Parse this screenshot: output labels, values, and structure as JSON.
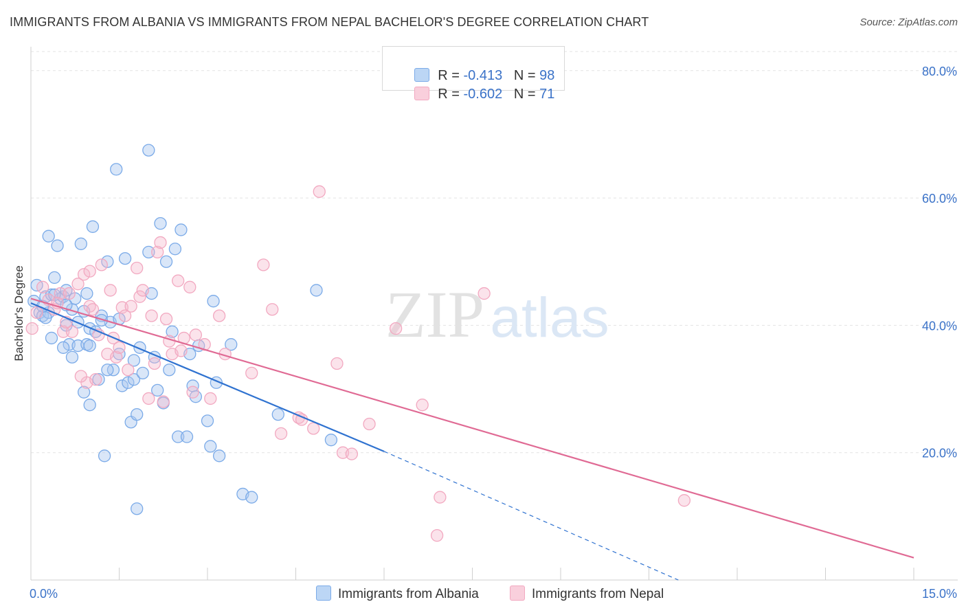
{
  "title": "IMMIGRANTS FROM ALBANIA VS IMMIGRANTS FROM NEPAL BACHELOR'S DEGREE CORRELATION CHART",
  "source": "Source: ZipAtlas.com",
  "watermark": {
    "zip": "ZIP",
    "atlas": "atlas"
  },
  "legend": {
    "rows": [
      {
        "r_label": "R = ",
        "r_value": "-0.413",
        "n_label": "N = ",
        "n_value": "98",
        "color": "#a8c8f0"
      },
      {
        "r_label": "R = ",
        "r_value": "-0.602",
        "n_label": "N = ",
        "n_value": "71",
        "color": "#f5b8cc"
      }
    ]
  },
  "chart_data": {
    "type": "scatter",
    "title": "IMMIGRANTS FROM ALBANIA VS IMMIGRANTS FROM NEPAL BACHELOR'S DEGREE CORRELATION CHART",
    "xlabel": "",
    "ylabel": "Bachelor's Degree",
    "xlim": [
      0,
      15
    ],
    "ylim": [
      0,
      83
    ],
    "x_tick_labels": [
      "0.0%",
      "15.0%"
    ],
    "y_ticks": [
      20,
      40,
      60,
      80
    ],
    "y_tick_labels": [
      "20.0%",
      "40.0%",
      "60.0%",
      "80.0%"
    ],
    "grid": true,
    "legend_position": "bottom-center",
    "series": [
      {
        "name": "Immigrants from Albania",
        "color": "#7aaae8",
        "line_color": "#2f72d0",
        "trend": {
          "x0": 0.0,
          "y0": 43.5,
          "x1": 6.0,
          "y1": 20.2,
          "dashed_to_x": 11.0,
          "dashed_to_y": 0.0
        },
        "points": [
          [
            0.05,
            43.8
          ],
          [
            0.1,
            46.3
          ],
          [
            0.15,
            42.0
          ],
          [
            0.2,
            41.5
          ],
          [
            0.25,
            44.5
          ],
          [
            0.3,
            54.0
          ],
          [
            0.35,
            44.8
          ],
          [
            0.4,
            47.5
          ],
          [
            0.45,
            52.5
          ],
          [
            0.5,
            44.2
          ],
          [
            0.55,
            44.5
          ],
          [
            0.6,
            45.5
          ],
          [
            0.6,
            40.0
          ],
          [
            0.65,
            37.0
          ],
          [
            0.7,
            42.5
          ],
          [
            0.75,
            44.2
          ],
          [
            0.8,
            40.5
          ],
          [
            0.8,
            36.8
          ],
          [
            0.85,
            52.8
          ],
          [
            0.9,
            42.2
          ],
          [
            0.95,
            37.0
          ],
          [
            1.0,
            39.5
          ],
          [
            1.0,
            36.8
          ],
          [
            1.05,
            55.5
          ],
          [
            1.1,
            39.0
          ],
          [
            1.15,
            31.5
          ],
          [
            1.2,
            41.5
          ],
          [
            1.25,
            19.5
          ],
          [
            1.3,
            50.0
          ],
          [
            1.35,
            40.5
          ],
          [
            1.4,
            33.0
          ],
          [
            1.45,
            64.5
          ],
          [
            1.5,
            41.0
          ],
          [
            1.5,
            35.5
          ],
          [
            1.55,
            30.5
          ],
          [
            1.6,
            50.5
          ],
          [
            1.65,
            31.0
          ],
          [
            1.7,
            24.8
          ],
          [
            1.75,
            34.5
          ],
          [
            1.75,
            31.5
          ],
          [
            1.8,
            26.0
          ],
          [
            1.85,
            36.5
          ],
          [
            1.9,
            32.5
          ],
          [
            2.0,
            51.5
          ],
          [
            2.05,
            45.0
          ],
          [
            2.1,
            35.0
          ],
          [
            2.15,
            29.8
          ],
          [
            2.2,
            56.0
          ],
          [
            2.25,
            27.8
          ],
          [
            2.3,
            50.0
          ],
          [
            2.35,
            33.0
          ],
          [
            2.4,
            39.0
          ],
          [
            2.45,
            52.0
          ],
          [
            2.5,
            22.5
          ],
          [
            2.55,
            55.0
          ],
          [
            2.65,
            22.5
          ],
          [
            2.7,
            35.5
          ],
          [
            2.75,
            30.5
          ],
          [
            2.8,
            28.8
          ],
          [
            2.85,
            36.8
          ],
          [
            3.0,
            25.0
          ],
          [
            3.05,
            21.0
          ],
          [
            3.1,
            43.8
          ],
          [
            3.15,
            31.0
          ],
          [
            3.2,
            19.5
          ],
          [
            3.4,
            37.0
          ],
          [
            3.6,
            13.5
          ],
          [
            3.75,
            13.0
          ],
          [
            4.2,
            26.0
          ],
          [
            4.85,
            45.5
          ],
          [
            5.1,
            22.0
          ],
          [
            2.0,
            67.5
          ],
          [
            1.8,
            11.2
          ],
          [
            0.3,
            42.0
          ],
          [
            0.35,
            38.0
          ],
          [
            0.55,
            36.5
          ],
          [
            0.7,
            35.0
          ],
          [
            0.9,
            29.5
          ],
          [
            1.0,
            27.5
          ],
          [
            1.3,
            33.0
          ],
          [
            0.2,
            43.0
          ],
          [
            0.4,
            44.8
          ],
          [
            0.95,
            45.0
          ],
          [
            0.25,
            41.2
          ],
          [
            0.6,
            43.2
          ],
          [
            1.2,
            40.8
          ]
        ]
      },
      {
        "name": "Immigrants from Nepal",
        "color": "#f2a8c0",
        "line_color": "#e06a94",
        "trend": {
          "x0": 0.0,
          "y0": 44.2,
          "x1": 15.0,
          "y1": 3.5
        },
        "points": [
          [
            0.02,
            39.5
          ],
          [
            0.1,
            42.0
          ],
          [
            0.2,
            46.0
          ],
          [
            0.3,
            44.0
          ],
          [
            0.4,
            42.5
          ],
          [
            0.5,
            45.0
          ],
          [
            0.55,
            39.0
          ],
          [
            0.65,
            45.0
          ],
          [
            0.7,
            39.0
          ],
          [
            0.8,
            46.5
          ],
          [
            0.9,
            48.0
          ],
          [
            0.95,
            31.0
          ],
          [
            1.0,
            43.0
          ],
          [
            1.05,
            42.5
          ],
          [
            1.1,
            31.5
          ],
          [
            1.15,
            38.5
          ],
          [
            1.2,
            49.5
          ],
          [
            1.3,
            35.5
          ],
          [
            1.35,
            45.5
          ],
          [
            1.4,
            38.0
          ],
          [
            1.45,
            35.0
          ],
          [
            1.5,
            36.5
          ],
          [
            1.55,
            42.8
          ],
          [
            1.6,
            41.5
          ],
          [
            1.7,
            43.0
          ],
          [
            1.8,
            49.0
          ],
          [
            1.85,
            44.5
          ],
          [
            1.9,
            45.5
          ],
          [
            2.0,
            28.5
          ],
          [
            2.05,
            41.5
          ],
          [
            2.1,
            34.0
          ],
          [
            2.15,
            51.5
          ],
          [
            2.2,
            53.0
          ],
          [
            2.3,
            41.0
          ],
          [
            2.35,
            37.5
          ],
          [
            2.4,
            35.5
          ],
          [
            2.5,
            47.0
          ],
          [
            2.55,
            36.0
          ],
          [
            2.6,
            38.0
          ],
          [
            2.7,
            46.0
          ],
          [
            2.75,
            29.5
          ],
          [
            2.8,
            38.5
          ],
          [
            2.95,
            37.0
          ],
          [
            3.05,
            28.5
          ],
          [
            3.2,
            41.5
          ],
          [
            3.3,
            35.5
          ],
          [
            3.75,
            32.5
          ],
          [
            3.95,
            49.5
          ],
          [
            4.1,
            42.5
          ],
          [
            4.25,
            23.0
          ],
          [
            4.55,
            25.5
          ],
          [
            4.6,
            25.2
          ],
          [
            4.8,
            23.8
          ],
          [
            4.9,
            61.0
          ],
          [
            5.2,
            34.0
          ],
          [
            5.3,
            20.0
          ],
          [
            5.45,
            19.8
          ],
          [
            5.75,
            24.5
          ],
          [
            6.2,
            39.5
          ],
          [
            6.65,
            27.5
          ],
          [
            6.9,
            7.0
          ],
          [
            6.95,
            13.0
          ],
          [
            7.7,
            45.0
          ],
          [
            11.1,
            12.5
          ],
          [
            1.0,
            48.5
          ],
          [
            0.85,
            32.0
          ],
          [
            2.25,
            28.0
          ],
          [
            0.45,
            43.5
          ],
          [
            0.6,
            40.5
          ],
          [
            1.65,
            33.0
          ]
        ]
      }
    ]
  }
}
